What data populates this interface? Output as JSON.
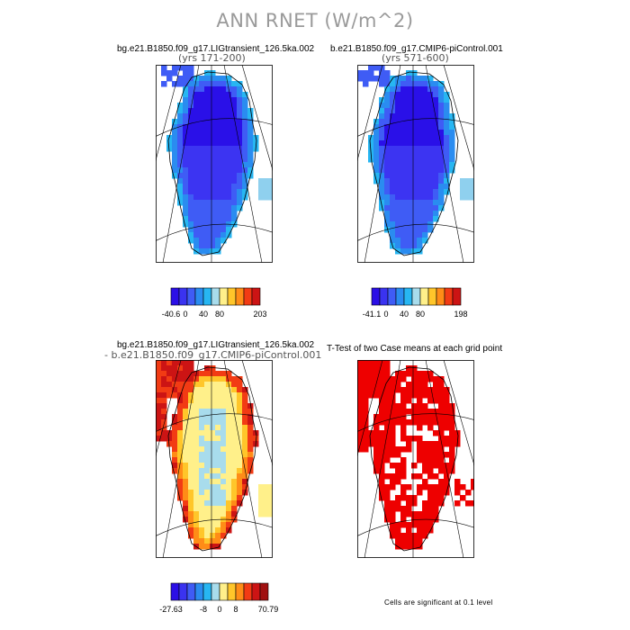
{
  "title": "ANN RNET (W/m^2)",
  "chart_data": [
    {
      "type": "heatmap",
      "title": "bg.e21.B1850.f09_g17.LIGtransient_126.5ka.002",
      "subtitle": "(yrs 171-200)",
      "colorbar": {
        "colors": [
          "#2b0fe6",
          "#3a33f0",
          "#3f5cf5",
          "#2a8cf0",
          "#27b6f2",
          "#a8dcec",
          "#fff08a",
          "#ffc62a",
          "#ff8c17",
          "#f23b14",
          "#cc1414"
        ],
        "tick_labels": [
          "-40.6",
          "0",
          "40",
          "80",
          "203"
        ]
      }
    },
    {
      "type": "heatmap",
      "title": "b.e21.B1850.f09_g17.CMIP6-piControl.001",
      "subtitle": "(yrs 571-600)",
      "colorbar": {
        "colors": [
          "#2b0fe6",
          "#3a33f0",
          "#3f5cf5",
          "#2a8cf0",
          "#27b6f2",
          "#a8dcec",
          "#fff08a",
          "#ffc62a",
          "#ff8c17",
          "#f23b14",
          "#cc1414"
        ],
        "tick_labels": [
          "-41.1",
          "0",
          "40",
          "80",
          "198"
        ]
      }
    },
    {
      "type": "heatmap",
      "title": "bg.e21.B1850.f09_g17.LIGtransient_126.5ka.002",
      "subtitle": "- b.e21.B1850.f09_g17.CMIP6-piControl.001",
      "colorbar": {
        "colors": [
          "#2b0fe6",
          "#3a33f0",
          "#3f5cf5",
          "#2a8cf0",
          "#27b6f2",
          "#a8dcec",
          "#fff08a",
          "#ffc62a",
          "#ff8c17",
          "#f23b14",
          "#cc1414",
          "#a01010"
        ],
        "tick_labels": [
          "-27.63",
          "-8",
          "0",
          "8",
          "70.79"
        ]
      }
    },
    {
      "type": "heatmap",
      "title": "T-Test of two Case means at each grid point",
      "note": "Cells are significant at 0.1 level",
      "significance_color": "#ee0000"
    }
  ]
}
